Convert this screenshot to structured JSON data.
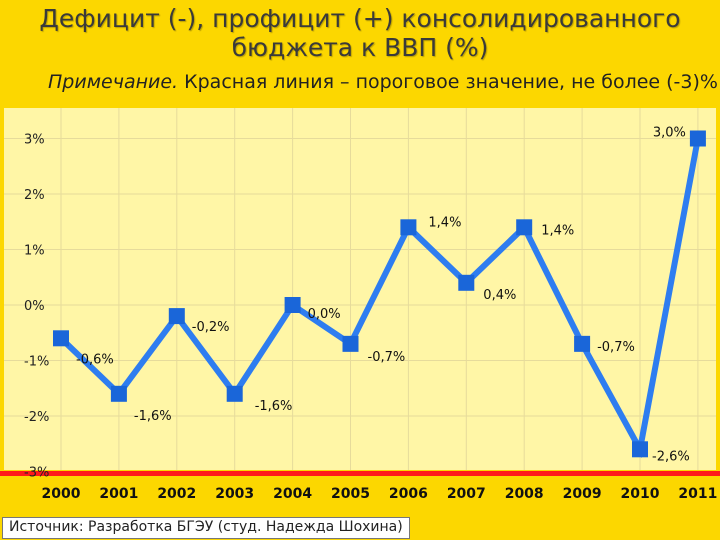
{
  "header": {
    "title_line1": "Дефицит (-), профицит (+) консолидированного",
    "title_line2": "бюджета к ВВП (%)",
    "note_lead": "Примечание.",
    "note_text": " Красная линия – пороговое значение, не более (-3)%"
  },
  "source": "Источник: Разработка БГЭУ (студ. Надежда Шохина)",
  "colors": {
    "background": "#fcd700",
    "plot_area": "#fff6a6",
    "line": "#2e7df0",
    "marker": "#1a66d9",
    "threshold": "#ff1a1a",
    "grid": "#e6db9b"
  },
  "chart_data": {
    "type": "line",
    "title": "Дефицит (-), профицит (+) консолидированного бюджета к ВВП (%)",
    "x": [
      "2000",
      "2001",
      "2002",
      "2003",
      "2004",
      "2005",
      "2006",
      "2007",
      "2008",
      "2009",
      "2010",
      "2011"
    ],
    "series": [
      {
        "values": [
          -0.6,
          -1.6,
          -0.2,
          -1.6,
          0.0,
          -0.7,
          1.4,
          0.4,
          1.4,
          -0.7,
          -2.6,
          3.0
        ],
        "labels": [
          "-0,6%",
          "-1,6%",
          "-0,2%",
          "-1,6%",
          "0,0%",
          "-0,7%",
          "1,4%",
          "0,4%",
          "1,4%",
          "-0,7%",
          "-2,6%",
          "3,0%"
        ]
      }
    ],
    "threshold": -3,
    "ylim": [
      -3,
      3.5
    ],
    "yticks": [
      -3,
      -2,
      -1,
      0,
      1,
      2,
      3
    ],
    "ytick_labels": [
      "-3%",
      "-2%",
      "-1%",
      "0%",
      "1%",
      "2%",
      "3%"
    ],
    "grid": true,
    "legend": "none"
  }
}
